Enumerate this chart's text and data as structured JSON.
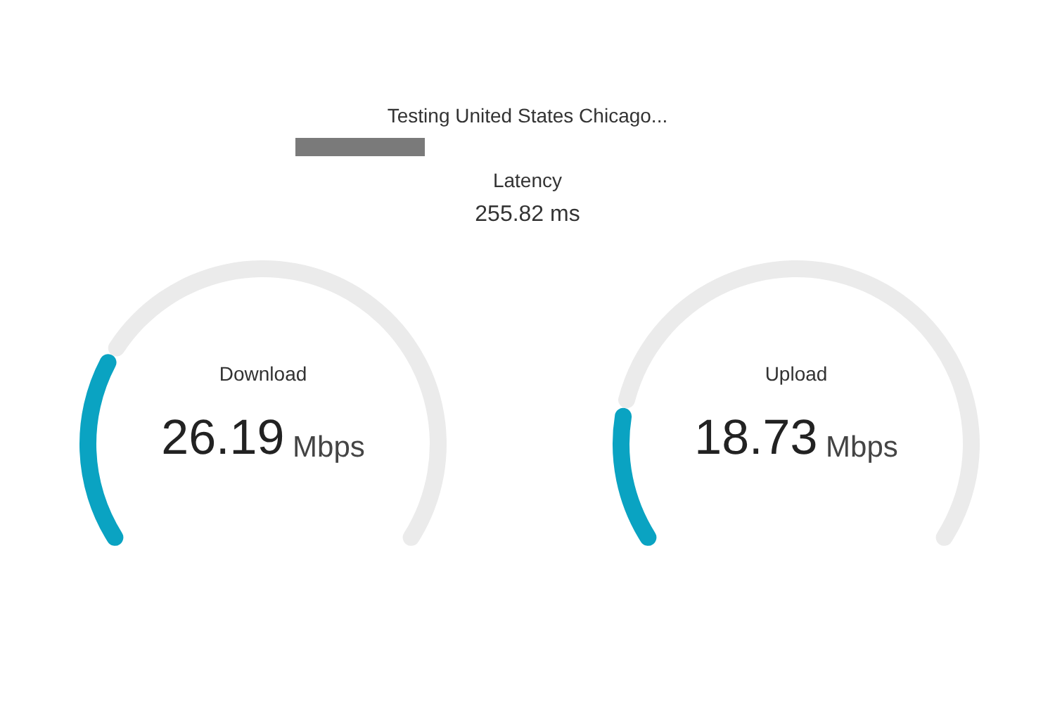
{
  "chart_data": [
    {
      "type": "other",
      "title": "Testing United States Chicago...",
      "annotations": [
        "Latency",
        "255.82 ms"
      ]
    },
    {
      "type": "donut",
      "title": "Download",
      "categories": [
        null,
        null
      ],
      "values": [
        26.19,
        73.81
      ],
      "colors": [
        "#0aa3c2",
        "#ebebeb"
      ],
      "annotations": [
        "26.19 Mbps"
      ]
    },
    {
      "type": "donut",
      "title": "Upload",
      "categories": [
        null,
        null
      ],
      "values": [
        18.73,
        81.27
      ],
      "colors": [
        "#0aa3c2",
        "#ebebeb"
      ],
      "annotations": [
        "18.73 Mbps"
      ]
    }
  ]
}
